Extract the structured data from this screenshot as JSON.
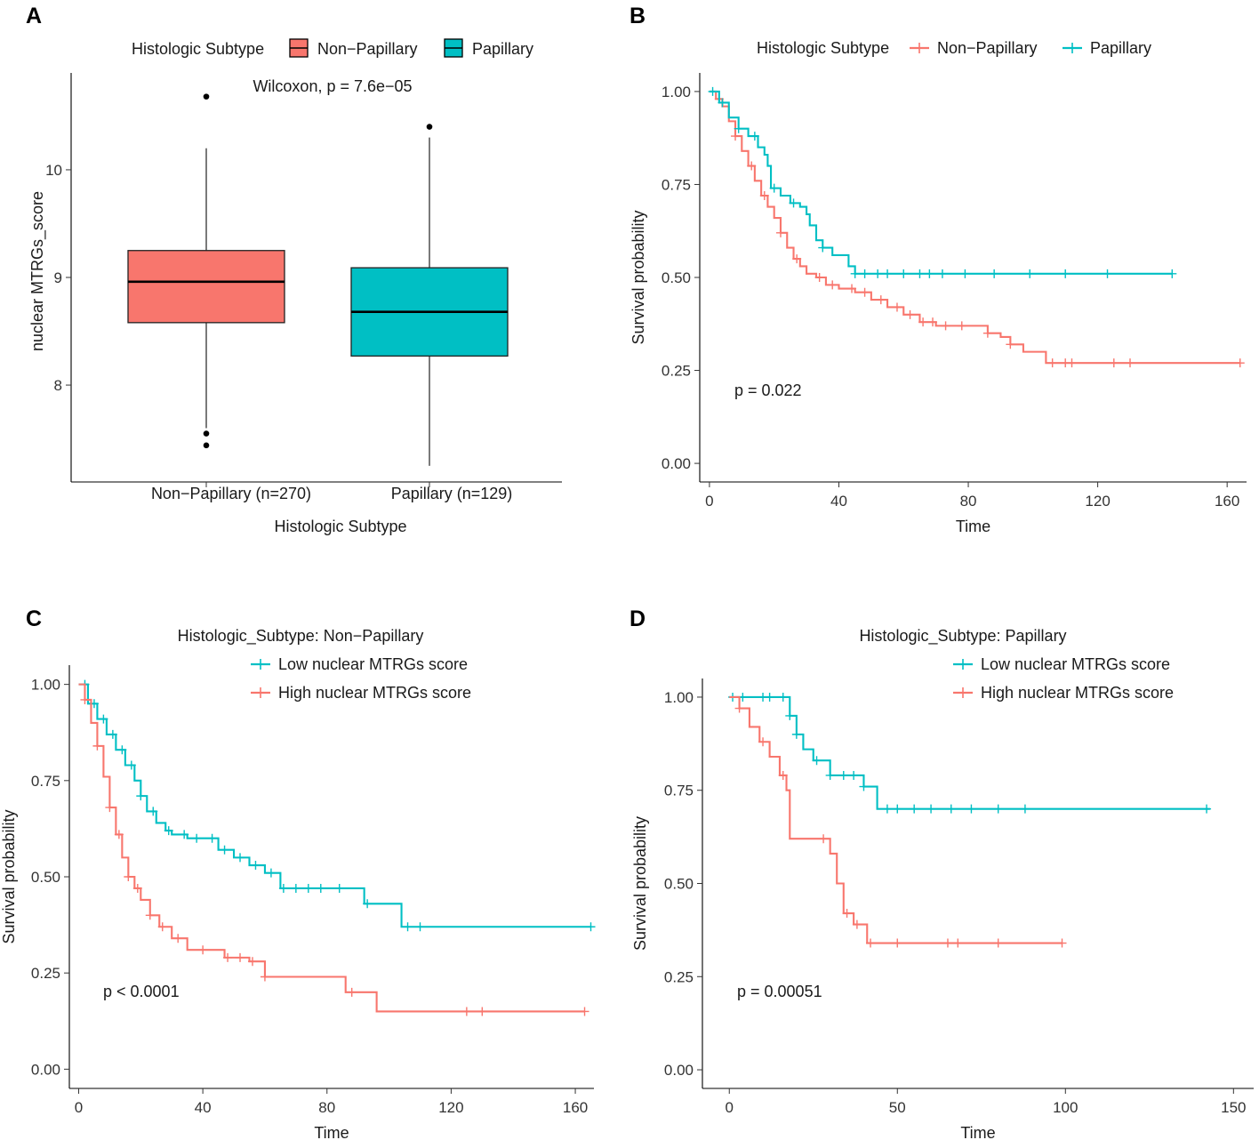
{
  "colors": {
    "red": "#f8766d",
    "teal": "#00bfc4"
  },
  "chart_data": [
    {
      "panel": "A",
      "type": "box",
      "legend_title": "Histologic Subtype",
      "legend": [
        "Non−Papillary",
        "Papillary"
      ],
      "annotation": "Wilcoxon, p = 7.6e−05",
      "categories": [
        "Non−Papillary (n=270)",
        "Papillary (n=129)"
      ],
      "xlabel": "Histologic Subtype",
      "ylabel": "nuclear MTRGs_score",
      "ylim": [
        7.1,
        10.9
      ],
      "yticks": [
        8,
        9,
        10
      ],
      "boxes": [
        {
          "q1": 8.58,
          "median": 8.96,
          "q3": 9.25,
          "whisker_low": 7.6,
          "whisker_high": 10.2,
          "outliers": [
            10.68,
            7.55,
            7.44
          ]
        },
        {
          "q1": 8.27,
          "median": 8.68,
          "q3": 9.09,
          "whisker_low": 7.25,
          "whisker_high": 10.3,
          "outliers": [
            10.4
          ]
        }
      ]
    },
    {
      "panel": "B",
      "type": "line",
      "subtype": "kaplan-meier",
      "legend_title": "Histologic Subtype",
      "legend": [
        "Non−Papillary",
        "Papillary"
      ],
      "annotation": "p = 0.022",
      "xlabel": "Time",
      "ylabel": "Survival probability",
      "xlim": [
        -3,
        166
      ],
      "ylim": [
        -0.05,
        1.05
      ],
      "xticks": [
        0,
        40,
        80,
        120,
        160
      ],
      "yticks": [
        "0.00",
        "0.25",
        "0.50",
        "0.75",
        "1.00"
      ],
      "series": [
        {
          "name": "Non−Papillary",
          "color_key": "red",
          "x": [
            0,
            2,
            4,
            6,
            8,
            10,
            12,
            14,
            16,
            18,
            20,
            22,
            24,
            26,
            28,
            30,
            33,
            36,
            40,
            45,
            50,
            55,
            60,
            65,
            70,
            75,
            80,
            86,
            90,
            93,
            97,
            104,
            164
          ],
          "y": [
            1.0,
            0.98,
            0.96,
            0.92,
            0.88,
            0.84,
            0.8,
            0.76,
            0.72,
            0.69,
            0.66,
            0.62,
            0.58,
            0.55,
            0.53,
            0.51,
            0.5,
            0.48,
            0.47,
            0.46,
            0.44,
            0.42,
            0.4,
            0.38,
            0.37,
            0.37,
            0.37,
            0.35,
            0.34,
            0.32,
            0.3,
            0.27,
            0.27
          ],
          "censor_x": [
            3,
            8,
            13,
            17,
            22,
            27,
            34,
            38,
            44,
            48,
            53,
            58,
            62,
            66,
            69,
            73,
            78,
            86,
            93,
            106,
            110,
            112,
            125,
            130,
            164
          ]
        },
        {
          "name": "Papillary",
          "color_key": "teal",
          "x": [
            0,
            3,
            6,
            9,
            12,
            15,
            17,
            18,
            19,
            22,
            25,
            28,
            30,
            31,
            33,
            35,
            38,
            43,
            45,
            143
          ],
          "y": [
            1.0,
            0.97,
            0.93,
            0.9,
            0.88,
            0.85,
            0.83,
            0.8,
            0.74,
            0.72,
            0.7,
            0.69,
            0.67,
            0.64,
            0.6,
            0.58,
            0.56,
            0.53,
            0.51,
            0.51
          ],
          "censor_x": [
            1,
            4,
            9,
            14,
            20,
            26,
            35,
            45,
            48,
            52,
            55,
            60,
            65,
            68,
            72,
            79,
            88,
            99,
            110,
            123,
            143
          ]
        }
      ]
    },
    {
      "panel": "C",
      "type": "line",
      "subtype": "kaplan-meier",
      "title": "Histologic_Subtype: Non−Papillary",
      "legend": [
        "Low nuclear MTRGs score",
        "High nuclear MTRGs score"
      ],
      "annotation": "p < 0.0001",
      "xlabel": "Time",
      "ylabel": "Survival probability",
      "xlim": [
        -3,
        166
      ],
      "ylim": [
        -0.05,
        1.05
      ],
      "xticks": [
        0,
        40,
        80,
        120,
        160
      ],
      "yticks": [
        "0.00",
        "0.25",
        "0.50",
        "0.75",
        "1.00"
      ],
      "series": [
        {
          "name": "Low nuclear MTRGs score",
          "color_key": "teal",
          "x": [
            0,
            3,
            6,
            9,
            12,
            15,
            18,
            20,
            22,
            25,
            28,
            30,
            35,
            40,
            45,
            50,
            55,
            60,
            65,
            75,
            86,
            92,
            104,
            165
          ],
          "y": [
            1.0,
            0.95,
            0.91,
            0.87,
            0.83,
            0.79,
            0.75,
            0.71,
            0.67,
            0.64,
            0.62,
            0.61,
            0.6,
            0.6,
            0.57,
            0.55,
            0.53,
            0.51,
            0.47,
            0.47,
            0.47,
            0.43,
            0.37,
            0.37
          ],
          "censor_x": [
            2,
            5,
            8,
            11,
            14,
            17,
            20,
            24,
            29,
            34,
            38,
            43,
            47,
            52,
            57,
            62,
            66,
            70,
            74,
            78,
            84,
            93,
            106,
            110,
            165
          ]
        },
        {
          "name": "High nuclear MTRGs score",
          "color_key": "red",
          "x": [
            0,
            2,
            4,
            6,
            8,
            10,
            12,
            14,
            16,
            18,
            20,
            23,
            26,
            30,
            35,
            40,
            47,
            55,
            60,
            86,
            96,
            163
          ],
          "y": [
            1.0,
            0.96,
            0.9,
            0.84,
            0.76,
            0.68,
            0.61,
            0.55,
            0.5,
            0.47,
            0.44,
            0.4,
            0.37,
            0.34,
            0.31,
            0.31,
            0.29,
            0.28,
            0.24,
            0.2,
            0.15,
            0.15
          ],
          "censor_x": [
            2,
            6,
            10,
            13,
            16,
            19,
            23,
            27,
            32,
            40,
            48,
            52,
            56,
            60,
            88,
            125,
            130,
            163
          ]
        }
      ]
    },
    {
      "panel": "D",
      "type": "line",
      "subtype": "kaplan-meier",
      "title": "Histologic_Subtype: Papillary",
      "legend": [
        "Low nuclear MTRGs score",
        "High nuclear MTRGs score"
      ],
      "annotation": "p = 0.00051",
      "xlabel": "Time",
      "ylabel": "Survival probability",
      "xlim": [
        -8,
        156
      ],
      "ylim": [
        -0.05,
        1.05
      ],
      "xticks": [
        0,
        50,
        100,
        150
      ],
      "yticks": [
        "0.00",
        "0.25",
        "0.50",
        "0.75",
        "1.00"
      ],
      "series": [
        {
          "name": "Low nuclear MTRGs score",
          "color_key": "teal",
          "x": [
            0,
            3,
            18,
            20,
            22,
            25,
            30,
            40,
            44,
            143
          ],
          "y": [
            1.0,
            1.0,
            0.95,
            0.9,
            0.86,
            0.83,
            0.79,
            0.76,
            0.7,
            0.7
          ],
          "censor_x": [
            1,
            4,
            10,
            12,
            16,
            18,
            20,
            26,
            30,
            34,
            37,
            40,
            47,
            50,
            55,
            60,
            66,
            72,
            80,
            88,
            142
          ]
        },
        {
          "name": "High nuclear MTRGs score",
          "color_key": "red",
          "x": [
            0,
            3,
            6,
            9,
            12,
            15,
            17,
            18,
            30,
            32,
            34,
            37,
            41,
            99
          ],
          "y": [
            1.0,
            0.97,
            0.92,
            0.88,
            0.84,
            0.79,
            0.75,
            0.62,
            0.58,
            0.5,
            0.42,
            0.39,
            0.34,
            0.34
          ],
          "censor_x": [
            3,
            10,
            16,
            28,
            35,
            38,
            42,
            50,
            65,
            68,
            80,
            99
          ]
        }
      ]
    }
  ]
}
